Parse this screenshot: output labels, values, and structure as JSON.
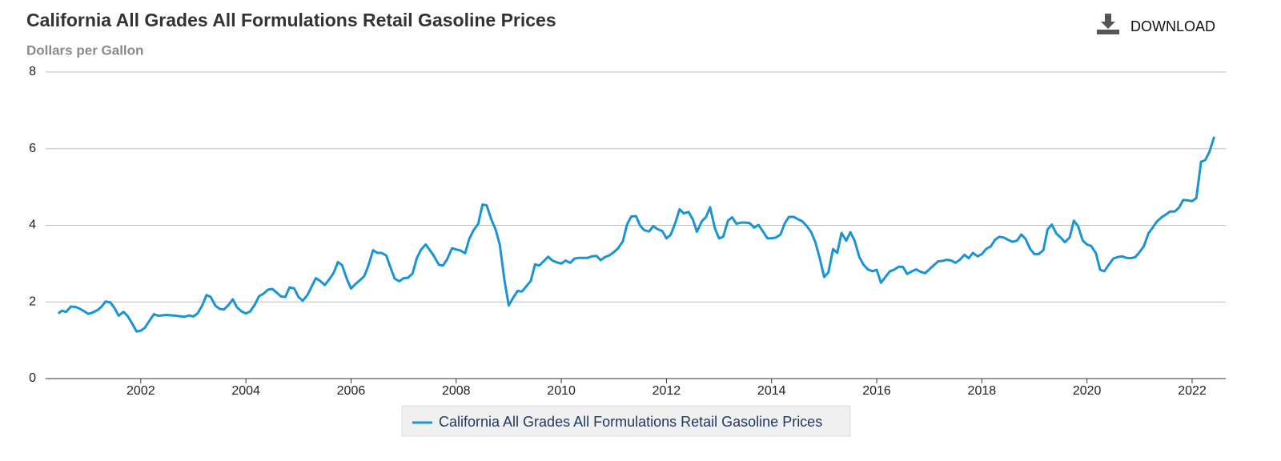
{
  "toolbar": {
    "download": "DOWNLOAD"
  },
  "chart_data": {
    "type": "line",
    "title": "California All Grades All Formulations Retail Gasoline Prices",
    "subtitle": "Dollars per Gallon",
    "xlim": [
      2000.19,
      2022.64
    ],
    "xticks": [
      2002,
      2004,
      2006,
      2008,
      2010,
      2012,
      2014,
      2016,
      2018,
      2020,
      2022
    ],
    "ylim": [
      0,
      8
    ],
    "yticks": [
      0,
      2,
      4,
      6,
      8
    ],
    "grid": true,
    "legend": "bottom",
    "x": [
      2000.43,
      2000.5,
      2000.58,
      2000.67,
      2000.75,
      2000.83,
      2000.92,
      2001.0,
      2001.08,
      2001.17,
      2001.25,
      2001.33,
      2001.42,
      2001.5,
      2001.58,
      2001.67,
      2001.75,
      2001.83,
      2001.92,
      2002.0,
      2002.08,
      2002.17,
      2002.25,
      2002.33,
      2002.5,
      2002.67,
      2002.83,
      2002.92,
      2003.0,
      2003.08,
      2003.17,
      2003.25,
      2003.33,
      2003.42,
      2003.5,
      2003.58,
      2003.67,
      2003.75,
      2003.83,
      2003.92,
      2004.0,
      2004.08,
      2004.17,
      2004.25,
      2004.33,
      2004.42,
      2004.5,
      2004.58,
      2004.67,
      2004.75,
      2004.83,
      2004.92,
      2005.0,
      2005.08,
      2005.17,
      2005.25,
      2005.33,
      2005.42,
      2005.5,
      2005.58,
      2005.67,
      2005.75,
      2005.83,
      2005.92,
      2006.0,
      2006.08,
      2006.17,
      2006.25,
      2006.33,
      2006.42,
      2006.5,
      2006.58,
      2006.67,
      2006.75,
      2006.83,
      2006.92,
      2007.0,
      2007.08,
      2007.17,
      2007.25,
      2007.33,
      2007.42,
      2007.5,
      2007.58,
      2007.67,
      2007.75,
      2007.83,
      2007.92,
      2008.08,
      2008.17,
      2008.25,
      2008.33,
      2008.42,
      2008.5,
      2008.58,
      2008.67,
      2008.75,
      2008.83,
      2008.92,
      2009.0,
      2009.08,
      2009.17,
      2009.25,
      2009.33,
      2009.42,
      2009.5,
      2009.58,
      2009.67,
      2009.75,
      2009.83,
      2009.92,
      2010.0,
      2010.08,
      2010.17,
      2010.25,
      2010.33,
      2010.5,
      2010.58,
      2010.67,
      2010.75,
      2010.83,
      2010.92,
      2011.0,
      2011.08,
      2011.17,
      2011.25,
      2011.33,
      2011.42,
      2011.5,
      2011.58,
      2011.67,
      2011.75,
      2011.83,
      2011.92,
      2012.0,
      2012.08,
      2012.17,
      2012.25,
      2012.33,
      2012.42,
      2012.5,
      2012.58,
      2012.67,
      2012.75,
      2012.83,
      2012.92,
      2013.0,
      2013.08,
      2013.17,
      2013.25,
      2013.33,
      2013.42,
      2013.5,
      2013.58,
      2013.67,
      2013.75,
      2013.83,
      2013.92,
      2014.0,
      2014.08,
      2014.17,
      2014.25,
      2014.33,
      2014.42,
      2014.5,
      2014.58,
      2014.67,
      2014.75,
      2014.83,
      2014.92,
      2015.0,
      2015.08,
      2015.17,
      2015.25,
      2015.33,
      2015.42,
      2015.5,
      2015.58,
      2015.67,
      2015.75,
      2015.83,
      2015.92,
      2016.0,
      2016.08,
      2016.17,
      2016.25,
      2016.33,
      2016.42,
      2016.5,
      2016.58,
      2016.67,
      2016.75,
      2016.83,
      2016.92,
      2017.0,
      2017.08,
      2017.17,
      2017.25,
      2017.33,
      2017.42,
      2017.5,
      2017.58,
      2017.67,
      2017.75,
      2017.83,
      2017.92,
      2018.0,
      2018.08,
      2018.17,
      2018.25,
      2018.33,
      2018.42,
      2018.5,
      2018.58,
      2018.67,
      2018.75,
      2018.83,
      2018.92,
      2019.0,
      2019.08,
      2019.17,
      2019.25,
      2019.33,
      2019.42,
      2019.5,
      2019.58,
      2019.67,
      2019.75,
      2019.83,
      2019.92,
      2020.0,
      2020.08,
      2020.17,
      2020.25,
      2020.33,
      2020.42,
      2020.5,
      2020.58,
      2020.67,
      2020.75,
      2020.83,
      2020.92,
      2021.0,
      2021.08,
      2021.17,
      2021.25,
      2021.33,
      2021.42,
      2021.5,
      2021.58,
      2021.67,
      2021.75,
      2021.83,
      2021.92,
      2022.0,
      2022.08,
      2022.17,
      2022.25,
      2022.33,
      2022.42
    ],
    "series": [
      {
        "name": "California All Grades All Formulations Retail Gasoline Prices",
        "color": "#1a94d5",
        "values": [
          1.7,
          1.77,
          1.74,
          1.88,
          1.87,
          1.83,
          1.76,
          1.69,
          1.72,
          1.78,
          1.87,
          2.01,
          1.99,
          1.84,
          1.64,
          1.74,
          1.63,
          1.45,
          1.23,
          1.25,
          1.33,
          1.52,
          1.68,
          1.64,
          1.66,
          1.64,
          1.61,
          1.65,
          1.62,
          1.7,
          1.91,
          2.18,
          2.13,
          1.9,
          1.82,
          1.8,
          1.92,
          2.07,
          1.86,
          1.75,
          1.7,
          1.75,
          1.93,
          2.15,
          2.21,
          2.32,
          2.34,
          2.25,
          2.14,
          2.13,
          2.38,
          2.35,
          2.13,
          2.03,
          2.18,
          2.4,
          2.62,
          2.54,
          2.44,
          2.58,
          2.76,
          3.04,
          2.96,
          2.6,
          2.35,
          2.46,
          2.57,
          2.67,
          2.95,
          3.35,
          3.28,
          3.28,
          3.21,
          2.9,
          2.61,
          2.54,
          2.62,
          2.63,
          2.74,
          3.14,
          3.36,
          3.5,
          3.35,
          3.19,
          2.97,
          2.95,
          3.12,
          3.4,
          3.34,
          3.27,
          3.65,
          3.87,
          4.04,
          4.54,
          4.52,
          4.15,
          3.89,
          3.49,
          2.55,
          1.91,
          2.1,
          2.29,
          2.27,
          2.4,
          2.55,
          2.98,
          2.95,
          3.07,
          3.18,
          3.08,
          3.03,
          3.0,
          3.08,
          3.02,
          3.13,
          3.15,
          3.15,
          3.19,
          3.2,
          3.09,
          3.17,
          3.22,
          3.3,
          3.4,
          3.58,
          4.02,
          4.23,
          4.24,
          3.99,
          3.87,
          3.84,
          3.98,
          3.9,
          3.85,
          3.66,
          3.75,
          4.07,
          4.42,
          4.31,
          4.35,
          4.16,
          3.83,
          4.1,
          4.21,
          4.47,
          3.93,
          3.66,
          3.7,
          4.12,
          4.21,
          4.04,
          4.07,
          4.07,
          4.06,
          3.94,
          4.01,
          3.85,
          3.66,
          3.66,
          3.68,
          3.76,
          4.05,
          4.22,
          4.22,
          4.16,
          4.11,
          3.98,
          3.83,
          3.57,
          3.12,
          2.65,
          2.77,
          3.38,
          3.28,
          3.8,
          3.6,
          3.82,
          3.6,
          3.17,
          2.97,
          2.85,
          2.8,
          2.84,
          2.5,
          2.66,
          2.8,
          2.84,
          2.92,
          2.91,
          2.73,
          2.8,
          2.85,
          2.79,
          2.75,
          2.85,
          2.95,
          3.06,
          3.07,
          3.1,
          3.08,
          3.02,
          3.1,
          3.23,
          3.14,
          3.28,
          3.19,
          3.25,
          3.38,
          3.45,
          3.62,
          3.7,
          3.68,
          3.62,
          3.57,
          3.6,
          3.76,
          3.65,
          3.38,
          3.25,
          3.25,
          3.35,
          3.89,
          4.02,
          3.78,
          3.68,
          3.56,
          3.68,
          4.12,
          3.98,
          3.6,
          3.5,
          3.46,
          3.27,
          2.84,
          2.8,
          2.98,
          3.13,
          3.17,
          3.19,
          3.15,
          3.14,
          3.17,
          3.3,
          3.45,
          3.79,
          3.94,
          4.1,
          4.21,
          4.28,
          4.36,
          4.36,
          4.46,
          4.66,
          4.65,
          4.63,
          4.71,
          5.66,
          5.7,
          5.92,
          6.31
        ]
      }
    ]
  }
}
